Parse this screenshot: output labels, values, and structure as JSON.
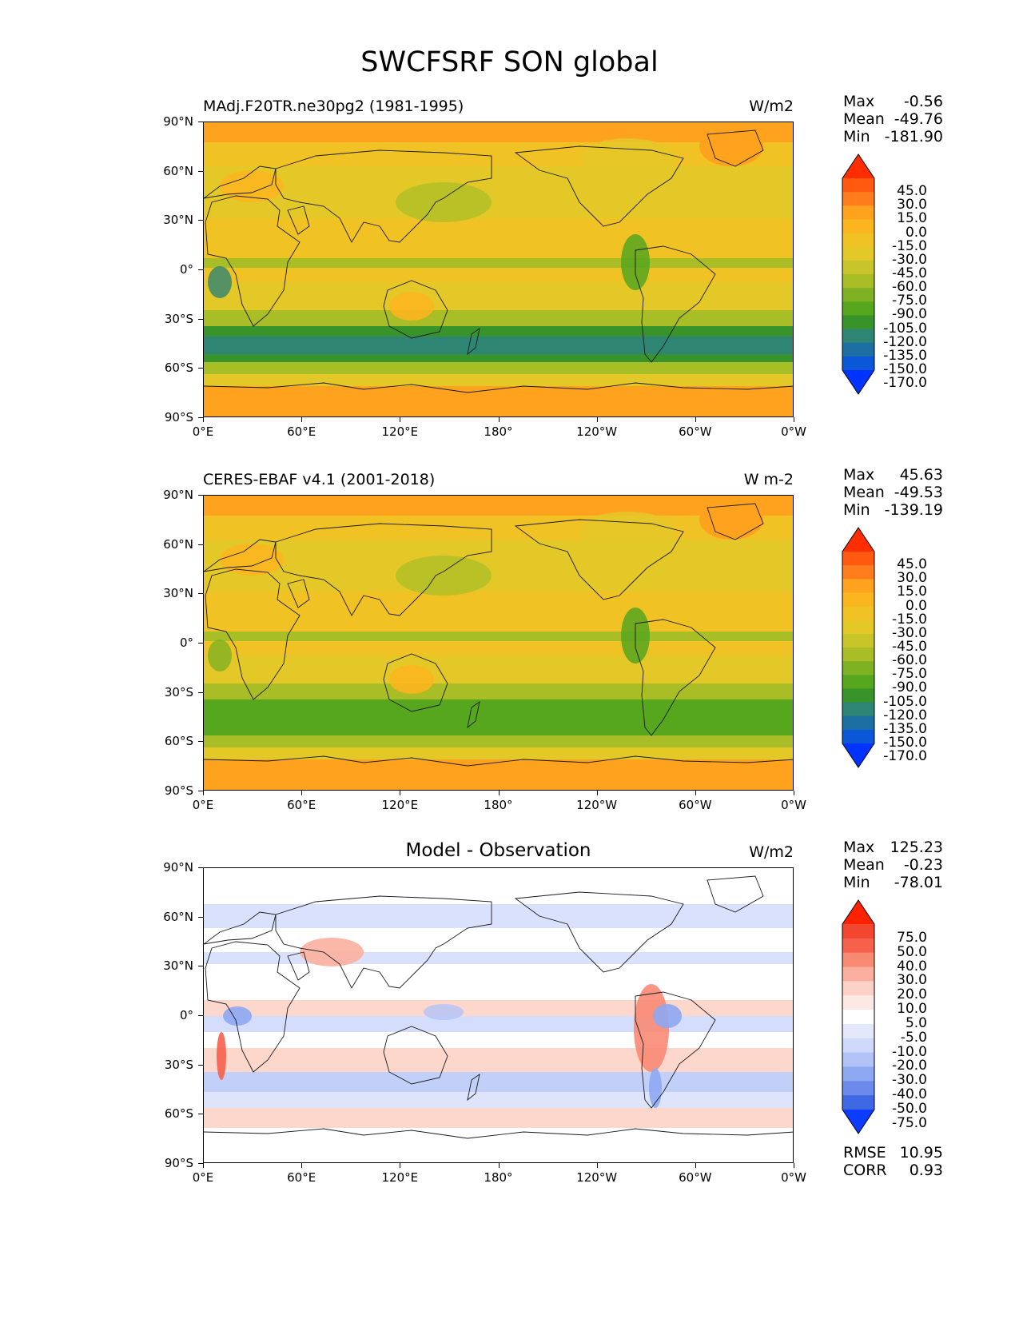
{
  "title": "SWCFSRF SON global",
  "lat_ticks": [
    "90°N",
    "60°N",
    "30°N",
    "0°",
    "30°S",
    "60°S",
    "90°S"
  ],
  "lon_ticks": [
    "0°E",
    "60°E",
    "120°E",
    "180°",
    "120°W",
    "60°W",
    "0°W"
  ],
  "colorbars": {
    "field": {
      "levels": [
        "45.0",
        "30.0",
        "15.0",
        "0.0",
        "-15.0",
        "-30.0",
        "-45.0",
        "-60.0",
        "-75.0",
        "-90.0",
        "-105.0",
        "-120.0",
        "-135.0",
        "-150.0",
        "-170.0"
      ],
      "colors": [
        "#ff2d00",
        "#ff5a10",
        "#ff7d1c",
        "#ffa21e",
        "#fbb51f",
        "#f0c224",
        "#e3c828",
        "#c8c52a",
        "#a8bd26",
        "#7fb222",
        "#56a61e",
        "#39932b",
        "#2f8574",
        "#1d6ea3",
        "#0a58d8",
        "#0033ff"
      ]
    },
    "diff": {
      "levels": [
        "75.0",
        "50.0",
        "40.0",
        "30.0",
        "20.0",
        "10.0",
        "5.0",
        "-5.0",
        "-10.0",
        "-20.0",
        "-30.0",
        "-40.0",
        "-50.0",
        "-75.0"
      ],
      "colors": [
        "#ff2200",
        "#f24631",
        "#f6614b",
        "#f88a74",
        "#fbb09f",
        "#fdd2c6",
        "#fde9e3",
        "#ffffff",
        "#e3e9fb",
        "#cfd9fb",
        "#b1c3f7",
        "#8ea7f1",
        "#6b8aeb",
        "#3f68e5",
        "#0b3cff"
      ]
    }
  },
  "panels": [
    {
      "title": "MAdj.F20TR.ne30pg2 (1981-1995)",
      "units": "W/m2",
      "stats": [
        {
          "label": "Max",
          "value": "-0.56"
        },
        {
          "label": "Mean",
          "value": "-49.76"
        },
        {
          "label": "Min",
          "value": "-181.90"
        }
      ],
      "colorbar": "field"
    },
    {
      "title": "CERES-EBAF v4.1 (2001-2018)",
      "units": "W m-2",
      "stats": [
        {
          "label": "Max",
          "value": "45.63"
        },
        {
          "label": "Mean",
          "value": "-49.53"
        },
        {
          "label": "Min",
          "value": "-139.19"
        }
      ],
      "colorbar": "field"
    },
    {
      "title": "Model - Observation",
      "units": "W/m2",
      "stats": [
        {
          "label": "Max",
          "value": "125.23"
        },
        {
          "label": "Mean",
          "value": "-0.23"
        },
        {
          "label": "Min",
          "value": "-78.01"
        }
      ],
      "colorbar": "diff",
      "extra_stats": [
        {
          "label": "RMSE",
          "value": "10.95"
        },
        {
          "label": "CORR",
          "value": "0.93"
        }
      ]
    }
  ]
}
